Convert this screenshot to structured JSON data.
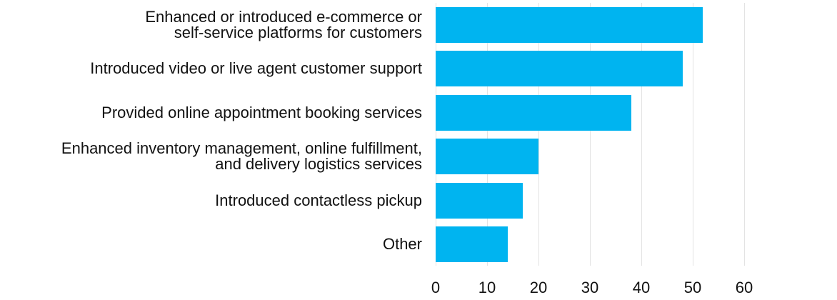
{
  "chart_data": {
    "type": "bar",
    "orientation": "horizontal",
    "title": "",
    "xlabel": "",
    "ylabel": "",
    "categories": [
      "Enhanced or introduced e-commerce or self-service platforms for customers",
      "Introduced video or live agent customer support",
      "Provided online appointment booking services",
      "Enhanced inventory management, online fulfillment, and delivery logistics services",
      "Introduced contactless pickup",
      "Other"
    ],
    "category_lines": [
      [
        "Enhanced or introduced e-commerce or",
        "self-service platforms for customers"
      ],
      [
        "Introduced video or live agent customer support"
      ],
      [
        "Provided online appointment booking services"
      ],
      [
        "Enhanced inventory management, online fulfillment,",
        "and delivery logistics services"
      ],
      [
        "Introduced contactless pickup"
      ],
      [
        "Other"
      ]
    ],
    "values": [
      52,
      48,
      38,
      20,
      17,
      14
    ],
    "xlim": [
      0,
      60
    ],
    "xticks": [
      "0",
      "10",
      "20",
      "30",
      "40",
      "50",
      "60"
    ],
    "grid": true,
    "bar_color": "#00b4f0"
  }
}
